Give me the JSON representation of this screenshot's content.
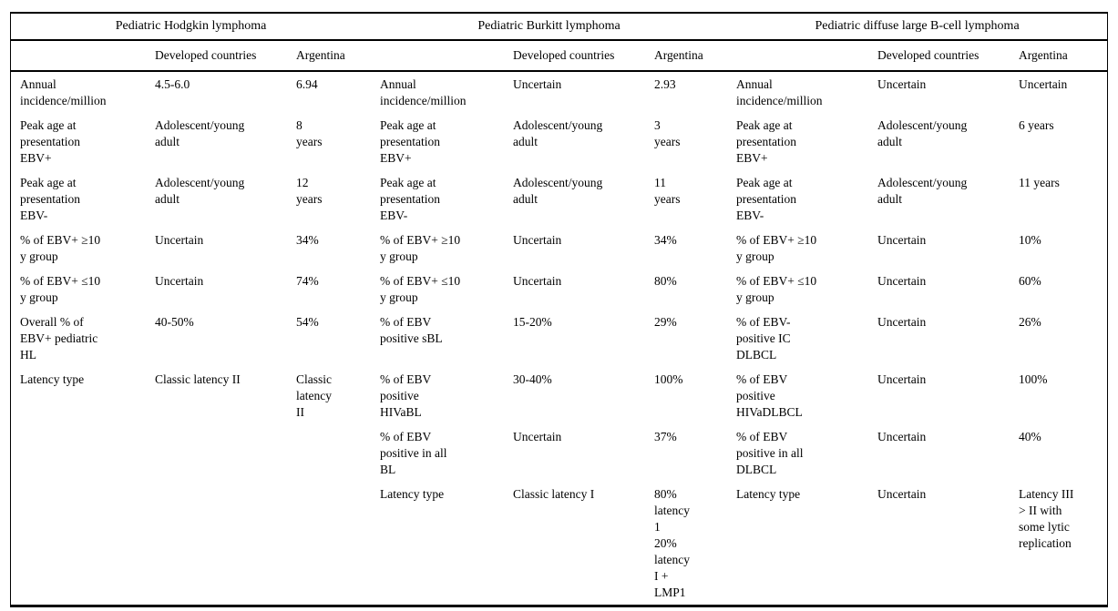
{
  "table": {
    "groups": [
      {
        "title": "Pediatric Hodgkin lymphoma",
        "columns": [
          "Developed countries",
          "Argentina"
        ]
      },
      {
        "title": "Pediatric Burkitt lymphoma",
        "columns": [
          "Developed countries",
          "Argentina"
        ]
      },
      {
        "title": "Pediatric diffuse large B-cell lymphoma",
        "columns": [
          "Developed countries",
          "Argentina"
        ]
      }
    ],
    "rows": [
      {
        "cells": [
          "Annual\nincidence/million",
          "4.5-6.0",
          "6.94",
          "Annual\nincidence/million",
          "Uncertain",
          "2.93",
          "Annual\nincidence/million",
          "Uncertain",
          "Uncertain"
        ]
      },
      {
        "cells": [
          "Peak age at\npresentation\nEBV+",
          "Adolescent/young\nadult",
          "8\nyears",
          "Peak age at\npresentation\nEBV+",
          "Adolescent/young\nadult",
          "3\nyears",
          "Peak age at\npresentation\nEBV+",
          "Adolescent/young\nadult",
          "6 years"
        ]
      },
      {
        "cells": [
          "Peak age at\npresentation\nEBV-",
          "Adolescent/young\nadult",
          "12\nyears",
          "Peak age at\npresentation\nEBV-",
          "Adolescent/young\nadult",
          "11\nyears",
          "Peak age at\npresentation\nEBV-",
          "Adolescent/young\nadult",
          "11 years"
        ]
      },
      {
        "cells": [
          "% of EBV+ ≥10\ny group",
          "Uncertain",
          "34%",
          "% of EBV+ ≥10\ny group",
          "Uncertain",
          "34%",
          "% of EBV+ ≥10\ny group",
          "Uncertain",
          "10%"
        ]
      },
      {
        "cells": [
          "% of EBV+ ≤10\ny group",
          "Uncertain",
          "74%",
          "% of EBV+ ≤10\ny group",
          "Uncertain",
          "80%",
          "% of EBV+ ≤10\ny group",
          "Uncertain",
          "60%"
        ]
      },
      {
        "cells": [
          "Overall % of\nEBV+ pediatric\nHL",
          "40-50%",
          "54%",
          "% of EBV\npositive sBL",
          "15-20%",
          "29%",
          "% of EBV-\npositive IC\nDLBCL",
          "Uncertain",
          "26%"
        ]
      },
      {
        "cells": [
          "Latency type",
          "Classic latency II",
          "Classic\nlatency\nII",
          "% of EBV\npositive\nHIVaBL",
          "30-40%",
          "100%",
          "% of EBV\npositive\nHIVaDLBCL",
          "Uncertain",
          "100%"
        ]
      },
      {
        "cells": [
          "",
          "",
          "",
          "% of EBV\npositive in all\nBL",
          "Uncertain",
          "37%",
          "% of EBV\npositive in all\nDLBCL",
          "Uncertain",
          "40%"
        ]
      },
      {
        "cells": [
          "",
          "",
          "",
          "Latency type",
          "Classic latency I",
          "80%\nlatency\n1\n20%\nlatency\nI +\nLMP1",
          "Latency type",
          "Uncertain",
          "Latency III\n> II with\nsome lytic\nreplication"
        ]
      }
    ]
  }
}
